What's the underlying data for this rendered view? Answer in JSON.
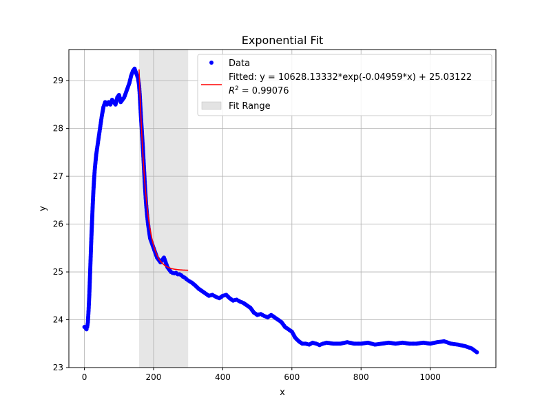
{
  "chart_data": {
    "type": "scatter",
    "title": "Exponential Fit",
    "xlabel": "x",
    "ylabel": "y",
    "xlim": [
      -45,
      1190
    ],
    "ylim": [
      23,
      29.65
    ],
    "xticks": [
      0,
      200,
      400,
      600,
      800,
      1000
    ],
    "yticks": [
      23,
      24,
      25,
      26,
      27,
      28,
      29
    ],
    "grid": true,
    "legend_position": "top-right",
    "fit_range": [
      158,
      300
    ],
    "colors": {
      "data": "#0000ff",
      "fit": "#ff0000",
      "fit_range": "#808080"
    },
    "series": [
      {
        "name": "Data",
        "kind": "scatter",
        "x": [
          0,
          4,
          6,
          8,
          10,
          12,
          14,
          16,
          18,
          20,
          22,
          24,
          26,
          28,
          30,
          32,
          34,
          36,
          38,
          40,
          42,
          44,
          46,
          48,
          50,
          55,
          60,
          65,
          70,
          75,
          80,
          85,
          90,
          95,
          100,
          105,
          110,
          115,
          120,
          125,
          130,
          135,
          140,
          145,
          150,
          155,
          158,
          160,
          163,
          166,
          169,
          172,
          175,
          178,
          181,
          184,
          187,
          190,
          195,
          200,
          205,
          210,
          215,
          220,
          225,
          230,
          235,
          240,
          245,
          250,
          255,
          260,
          265,
          270,
          275,
          280,
          285,
          290,
          295,
          300,
          310,
          320,
          330,
          340,
          350,
          360,
          370,
          380,
          390,
          400,
          410,
          420,
          430,
          440,
          450,
          460,
          470,
          480,
          490,
          500,
          510,
          520,
          530,
          540,
          550,
          560,
          570,
          580,
          590,
          600,
          610,
          620,
          630,
          640,
          650,
          660,
          670,
          680,
          690,
          700,
          720,
          740,
          760,
          780,
          800,
          820,
          840,
          860,
          880,
          900,
          920,
          940,
          960,
          980,
          1000,
          1020,
          1040,
          1060,
          1080,
          1100,
          1120,
          1135
        ],
        "y": [
          23.85,
          23.82,
          23.8,
          23.85,
          23.95,
          24.2,
          24.5,
          24.9,
          25.3,
          25.7,
          26.05,
          26.4,
          26.7,
          26.95,
          27.15,
          27.3,
          27.45,
          27.55,
          27.65,
          27.75,
          27.85,
          27.95,
          28.05,
          28.15,
          28.25,
          28.45,
          28.55,
          28.5,
          28.55,
          28.5,
          28.6,
          28.55,
          28.5,
          28.65,
          28.7,
          28.55,
          28.6,
          28.65,
          28.75,
          28.85,
          28.95,
          29.1,
          29.2,
          29.25,
          29.15,
          29.05,
          28.9,
          28.7,
          28.3,
          27.95,
          27.6,
          27.2,
          26.8,
          26.45,
          26.2,
          26.0,
          25.85,
          25.7,
          25.6,
          25.5,
          25.4,
          25.3,
          25.25,
          25.2,
          25.25,
          25.3,
          25.2,
          25.1,
          25.05,
          25.0,
          24.98,
          24.97,
          24.98,
          24.95,
          24.95,
          24.93,
          24.9,
          24.88,
          24.85,
          24.82,
          24.78,
          24.72,
          24.65,
          24.6,
          24.55,
          24.5,
          24.52,
          24.48,
          24.45,
          24.5,
          24.52,
          24.45,
          24.4,
          24.42,
          24.38,
          24.35,
          24.3,
          24.25,
          24.15,
          24.1,
          24.12,
          24.08,
          24.05,
          24.1,
          24.05,
          24.0,
          23.95,
          23.85,
          23.8,
          23.75,
          23.62,
          23.55,
          23.5,
          23.5,
          23.48,
          23.52,
          23.5,
          23.47,
          23.5,
          23.52,
          23.5,
          23.5,
          23.53,
          23.5,
          23.5,
          23.52,
          23.48,
          23.5,
          23.52,
          23.5,
          23.52,
          23.5,
          23.5,
          23.52,
          23.5,
          23.53,
          23.55,
          23.5,
          23.48,
          23.45,
          23.4,
          23.32
        ]
      },
      {
        "name": "Fitted: y = 10628.13332*exp(-0.04959*x) + 25.03122",
        "kind": "line",
        "model": {
          "a": 10628.13332,
          "b": -0.04959,
          "c": 25.03122
        },
        "x_range": [
          158,
          300
        ]
      }
    ],
    "r2_label": "= 0.99076",
    "fit_range_label": "Fit Range"
  }
}
